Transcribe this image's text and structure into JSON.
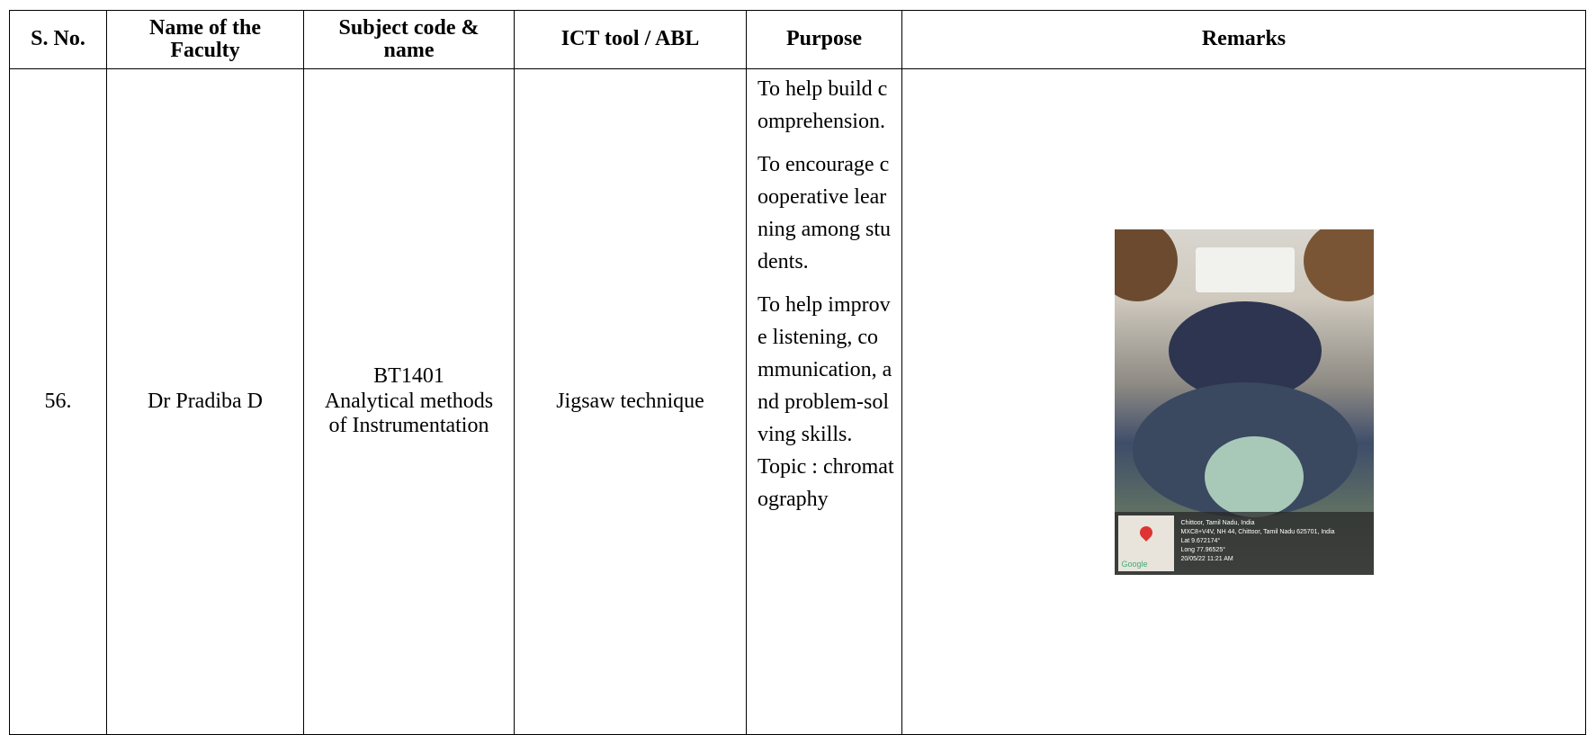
{
  "table": {
    "header": [
      "S. No.",
      "Name of the Faculty",
      "Subject code & name",
      "ICT tool / ABL",
      "Purpose",
      "Remarks"
    ],
    "rows": [
      {
        "sno": "56.",
        "faculty": "Dr Pradiba D",
        "subject": [
          "BT1401",
          "Analytical methods of Instrumentation"
        ],
        "tool": "Jigsaw technique",
        "purpose": [
          "To help build comprehension.",
          "To encourage cooperative learning among students.",
          "To help improve listening, communication, and problem-solving skills."
        ],
        "topic": "Topic : chromatography",
        "photo_caption": [
          "Chittoor, Tamil Nadu, India",
          "MXC8+V4V, NH 44, Chittoor, Tamil Nadu 625701, India",
          "Lat 9.672174°",
          "Long 77.96525°",
          "20/05/22 11:21 AM"
        ],
        "photo_map_label": "Google"
      }
    ]
  }
}
